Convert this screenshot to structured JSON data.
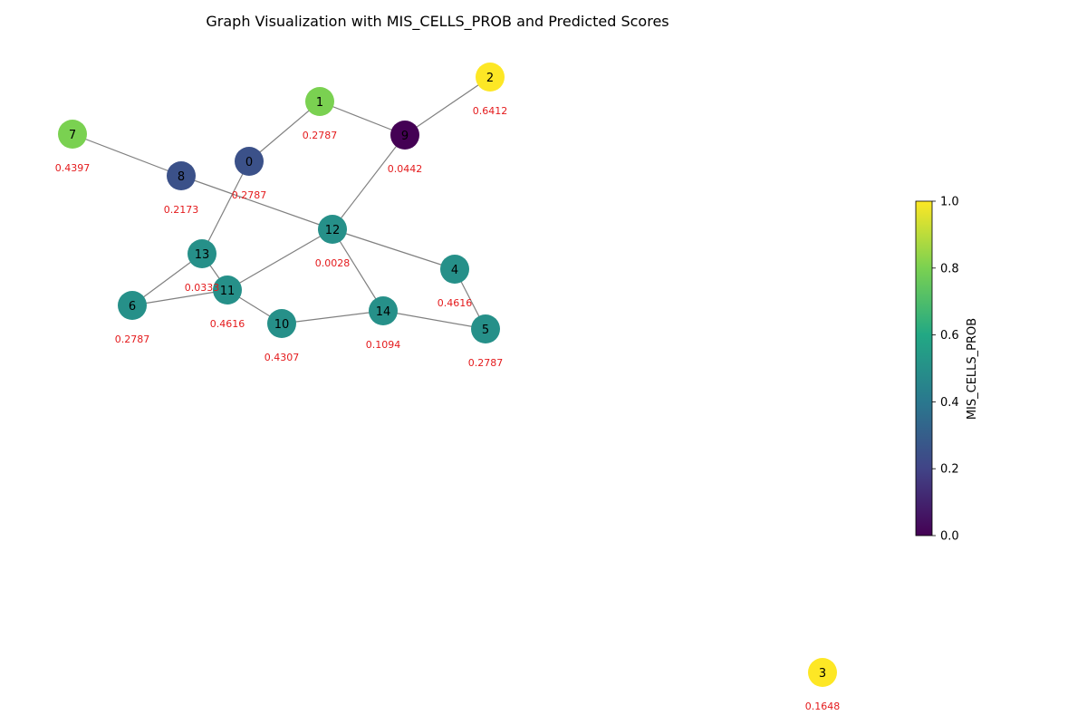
{
  "title": "Graph Visualization with MIS_CELLS_PROB and Predicted Scores",
  "colorbar": {
    "label": "MIS_CELLS_PROB",
    "ticks": [
      "0.0",
      "0.2",
      "0.4",
      "0.6",
      "0.8",
      "1.0"
    ],
    "min": 0.0,
    "max": 1.0,
    "colormap": "viridis"
  },
  "colors": {
    "edge": "#808080",
    "score_text": "#e41a1c"
  },
  "nodes": [
    {
      "id": "0",
      "mis_cells_prob": 0.25,
      "score": "0.2787"
    },
    {
      "id": "1",
      "mis_cells_prob": 0.8,
      "score": "0.2787"
    },
    {
      "id": "2",
      "mis_cells_prob": 1.0,
      "score": "0.6412"
    },
    {
      "id": "3",
      "mis_cells_prob": 1.0,
      "score": "0.1648"
    },
    {
      "id": "4",
      "mis_cells_prob": 0.5,
      "score": "0.4616"
    },
    {
      "id": "5",
      "mis_cells_prob": 0.5,
      "score": "0.2787"
    },
    {
      "id": "6",
      "mis_cells_prob": 0.5,
      "score": "0.2787"
    },
    {
      "id": "7",
      "mis_cells_prob": 0.8,
      "score": "0.4397"
    },
    {
      "id": "8",
      "mis_cells_prob": 0.25,
      "score": "0.2173"
    },
    {
      "id": "9",
      "mis_cells_prob": 0.0,
      "score": "0.0442"
    },
    {
      "id": "10",
      "mis_cells_prob": 0.5,
      "score": "0.4307"
    },
    {
      "id": "11",
      "mis_cells_prob": 0.5,
      "score": "0.4616"
    },
    {
      "id": "12",
      "mis_cells_prob": 0.5,
      "score": "0.0028"
    },
    {
      "id": "13",
      "mis_cells_prob": 0.5,
      "score": "0.0333"
    },
    {
      "id": "14",
      "mis_cells_prob": 0.5,
      "score": "0.1094"
    }
  ],
  "edges": [
    [
      "0",
      "1"
    ],
    [
      "0",
      "13"
    ],
    [
      "1",
      "9"
    ],
    [
      "2",
      "9"
    ],
    [
      "9",
      "12"
    ],
    [
      "7",
      "8"
    ],
    [
      "8",
      "12"
    ],
    [
      "12",
      "4"
    ],
    [
      "12",
      "11"
    ],
    [
      "12",
      "14"
    ],
    [
      "4",
      "5"
    ],
    [
      "13",
      "6"
    ],
    [
      "13",
      "11"
    ],
    [
      "6",
      "11"
    ],
    [
      "11",
      "10"
    ],
    [
      "10",
      "14"
    ],
    [
      "14",
      "5"
    ]
  ]
}
